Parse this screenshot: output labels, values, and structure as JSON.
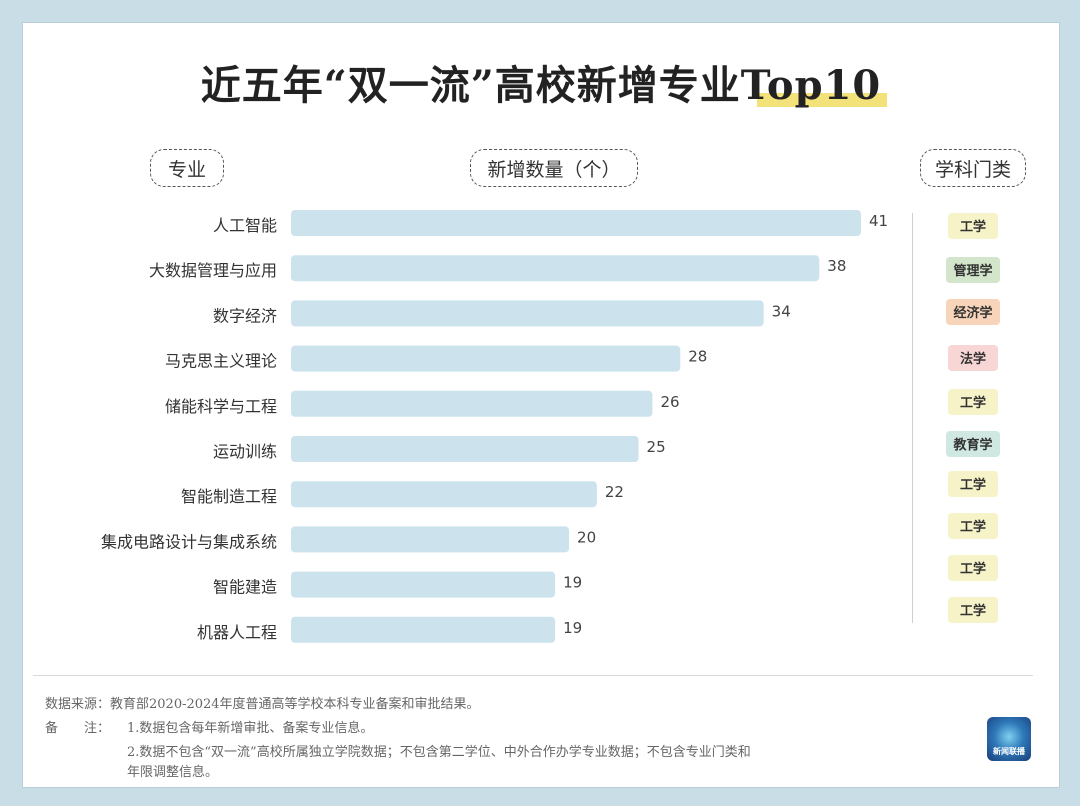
{
  "header": {
    "title": "近五年“双一流”高校新增专业Top10",
    "col_major": "专业",
    "col_count": "新增数量（个）",
    "col_category": "学科门类"
  },
  "chart_data": {
    "type": "bar",
    "orientation": "horizontal",
    "categories": [
      "人工智能",
      "大数据管理与应用",
      "数字经济",
      "马克思主义理论",
      "储能科学与工程",
      "运动训练",
      "智能制造工程",
      "集成电路设计与集成系统",
      "智能建造",
      "机器人工程"
    ],
    "values": [
      41,
      38,
      34,
      28,
      26,
      25,
      22,
      20,
      19,
      19
    ],
    "disciplines": [
      "工学",
      "管理学",
      "经济学",
      "法学",
      "工学",
      "教育学",
      "工学",
      "工学",
      "工学",
      "工学"
    ],
    "title": "近五年“双一流”高校新增专业Top10",
    "xlabel": "新增数量（个）",
    "ylabel": "专业",
    "xlim": [
      0,
      41
    ],
    "grid": false,
    "bar_color": "#cce3ed"
  },
  "badge_colors": {
    "工学": "#f7f3c9",
    "管理学": "#d3e6cc",
    "经济学": "#f8d5ba",
    "法学": "#f8d6d6",
    "教育学": "#cfe8e1"
  },
  "footer": {
    "source": "数据来源：教育部2020-2024年度普通高等学校本科专业备案和审批结果。",
    "note_label": "备　　注：",
    "note1": "1.数据包含每年新增审批、备案专业信息。",
    "note2": "2.数据不包含“双一流”高校所属独立学院数据；不包含第二学位、中外合作办学专业数据；不包含专业门类和",
    "note3": "年限调整信息。",
    "logo_text": "新闻联播"
  }
}
